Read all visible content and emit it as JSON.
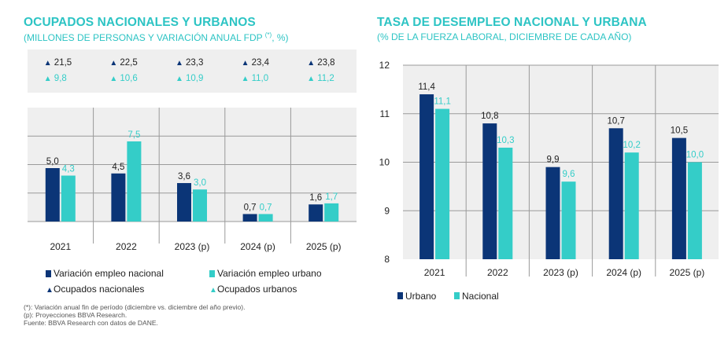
{
  "colors": {
    "navy": "#0b3577",
    "teal": "#34cdc8",
    "title": "#2dc4c4",
    "panel_bg": "#efefef",
    "text": "#222222"
  },
  "left_panel": {
    "title": "OCUPADOS NACIONALES Y URBANOS",
    "subtitle_main": "(MILLONES DE PERSONAS Y VARIACIÓN ANUAL FDP ",
    "subtitle_sup": "(*)",
    "subtitle_end": ", %)"
  },
  "right_panel": {
    "title": "TASA DE DESEMPLEO NACIONAL Y URBANA",
    "subtitle": "(% DE LA FUERZA LABORAL, DICIEMBRE DE CADA AÑO)"
  },
  "chart_data": [
    {
      "type": "bar",
      "title": "OCUPADOS NACIONALES Y URBANOS",
      "categories": [
        "2021",
        "2022",
        "2023 (p)",
        "2024 (p)",
        "2025 (p)"
      ],
      "series": [
        {
          "name": "Variación empleo nacional",
          "values": [
            5.0,
            4.5,
            3.6,
            0.7,
            1.6
          ],
          "labels": [
            "5,0",
            "4,5",
            "3,6",
            "0,7",
            "1,6"
          ],
          "color": "#0b3577"
        },
        {
          "name": "Variación empleo urbano",
          "values": [
            4.3,
            7.5,
            3.0,
            0.7,
            1.7
          ],
          "labels": [
            "4,3",
            "7,5",
            "3,0",
            "0,7",
            "1,7"
          ],
          "color": "#34cdc8"
        }
      ],
      "markers": [
        {
          "name": "Ocupados nacionales",
          "symbol": "▲",
          "labels": [
            "21,5",
            "22,5",
            "23,3",
            "23,4",
            "23,8"
          ],
          "color": "#0b3577"
        },
        {
          "name": "Ocupados urbanos",
          "symbol": "▲",
          "labels": [
            "9,8",
            "10,6",
            "10,9",
            "11,0",
            "11,2"
          ],
          "color": "#34cdc8"
        }
      ],
      "ylim": [
        0,
        8
      ]
    },
    {
      "type": "bar",
      "title": "TASA DE DESEMPLEO NACIONAL Y URBANA",
      "categories": [
        "2021",
        "2022",
        "2023 (p)",
        "2024 (p)",
        "2025 (p)"
      ],
      "series": [
        {
          "name": "Urbano",
          "values": [
            11.4,
            10.8,
            9.9,
            10.7,
            10.5
          ],
          "labels": [
            "11,4",
            "10,8",
            "9,9",
            "10,7",
            "10,5"
          ],
          "color": "#0b3577"
        },
        {
          "name": "Nacional",
          "values": [
            11.1,
            10.3,
            9.6,
            10.2,
            10.0
          ],
          "labels": [
            "11,1",
            "10,3",
            "9,6",
            "10,2",
            "10,0"
          ],
          "color": "#34cdc8"
        }
      ],
      "yticks": [
        "8",
        "9",
        "10",
        "11",
        "12"
      ],
      "ylim": [
        8,
        12
      ]
    }
  ],
  "footnotes": [
    "(*): Variación anual fin de período (diciembre vs. diciembre del año previo).",
    "(p): Proyecciones BBVA Research.",
    "Fuente: BBVA Research con datos de DANE."
  ]
}
